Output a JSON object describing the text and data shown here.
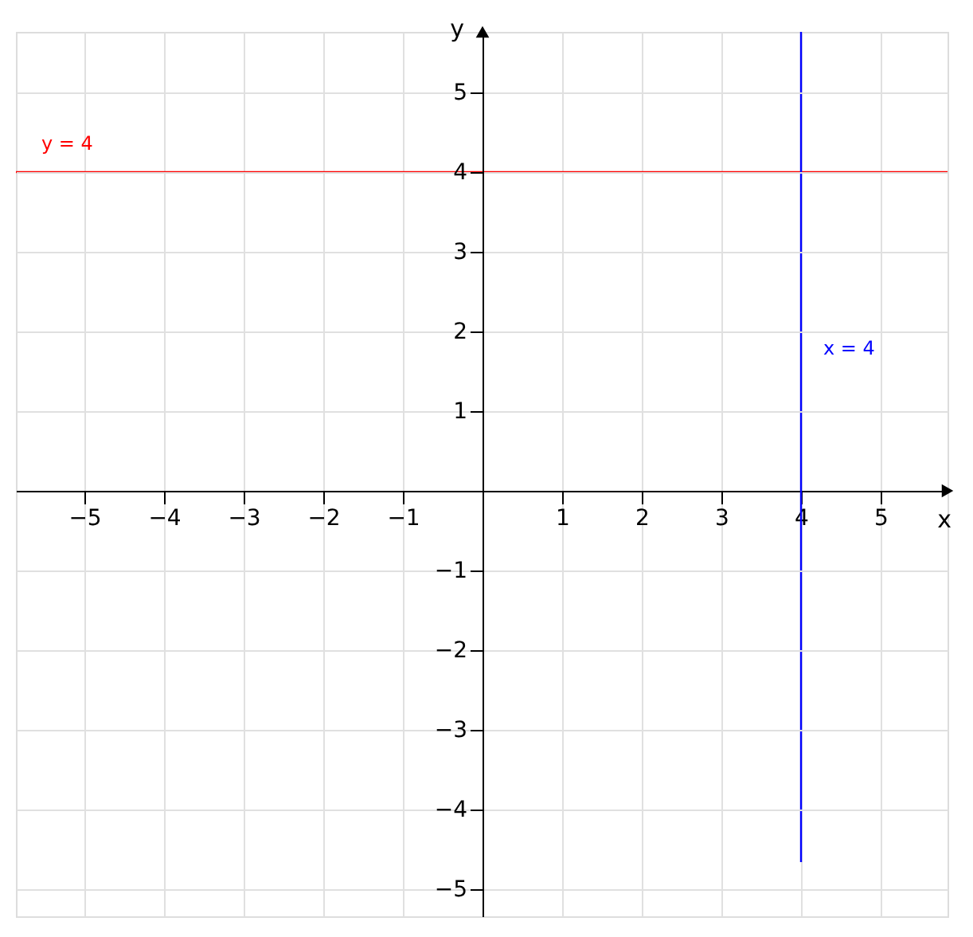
{
  "chart_data": {
    "type": "line",
    "xlabel": "x",
    "ylabel": "y",
    "xlim": [
      -5.86,
      5.84
    ],
    "ylim": [
      -5.34,
      5.76
    ],
    "xticks": [
      -5,
      -4,
      -3,
      -2,
      -1,
      1,
      2,
      3,
      4,
      5
    ],
    "yticks": [
      -5,
      -4,
      -3,
      -2,
      -1,
      1,
      2,
      3,
      4,
      5
    ],
    "grid": true,
    "marker": "none",
    "line_style": "solid",
    "series": [
      {
        "name": "y = 4",
        "color": "#ff0000",
        "x": [
          -5.86,
          5.84
        ],
        "values": [
          4,
          4
        ]
      },
      {
        "name": "x = 4",
        "color": "#0000ff",
        "x": [
          4,
          4
        ],
        "values": [
          -4.66,
          5.76
        ]
      }
    ]
  }
}
